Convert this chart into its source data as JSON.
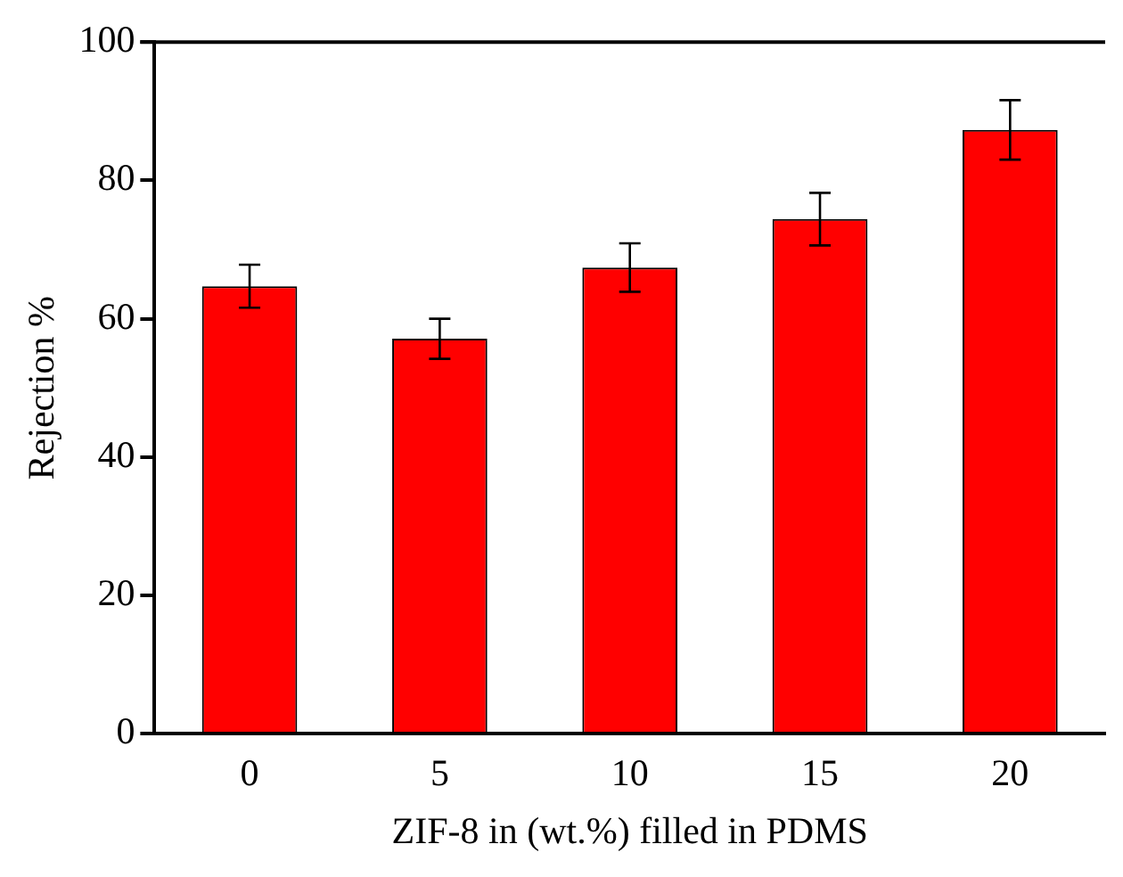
{
  "chart_data": {
    "type": "bar",
    "xlabel": "ZIF-8 in (wt.%) filled in PDMS",
    "ylabel": "Rejection %",
    "categories": [
      "0",
      "5",
      "10",
      "15",
      "20"
    ],
    "values": [
      64.7,
      57.1,
      67.4,
      74.4,
      87.3
    ],
    "errors": [
      3.1,
      2.9,
      3.5,
      3.8,
      4.3
    ],
    "color": "#ff0000",
    "ylim": [
      0,
      100
    ],
    "yticks": [
      0,
      20,
      40,
      60,
      80,
      100
    ],
    "grid": false,
    "legend": false
  }
}
